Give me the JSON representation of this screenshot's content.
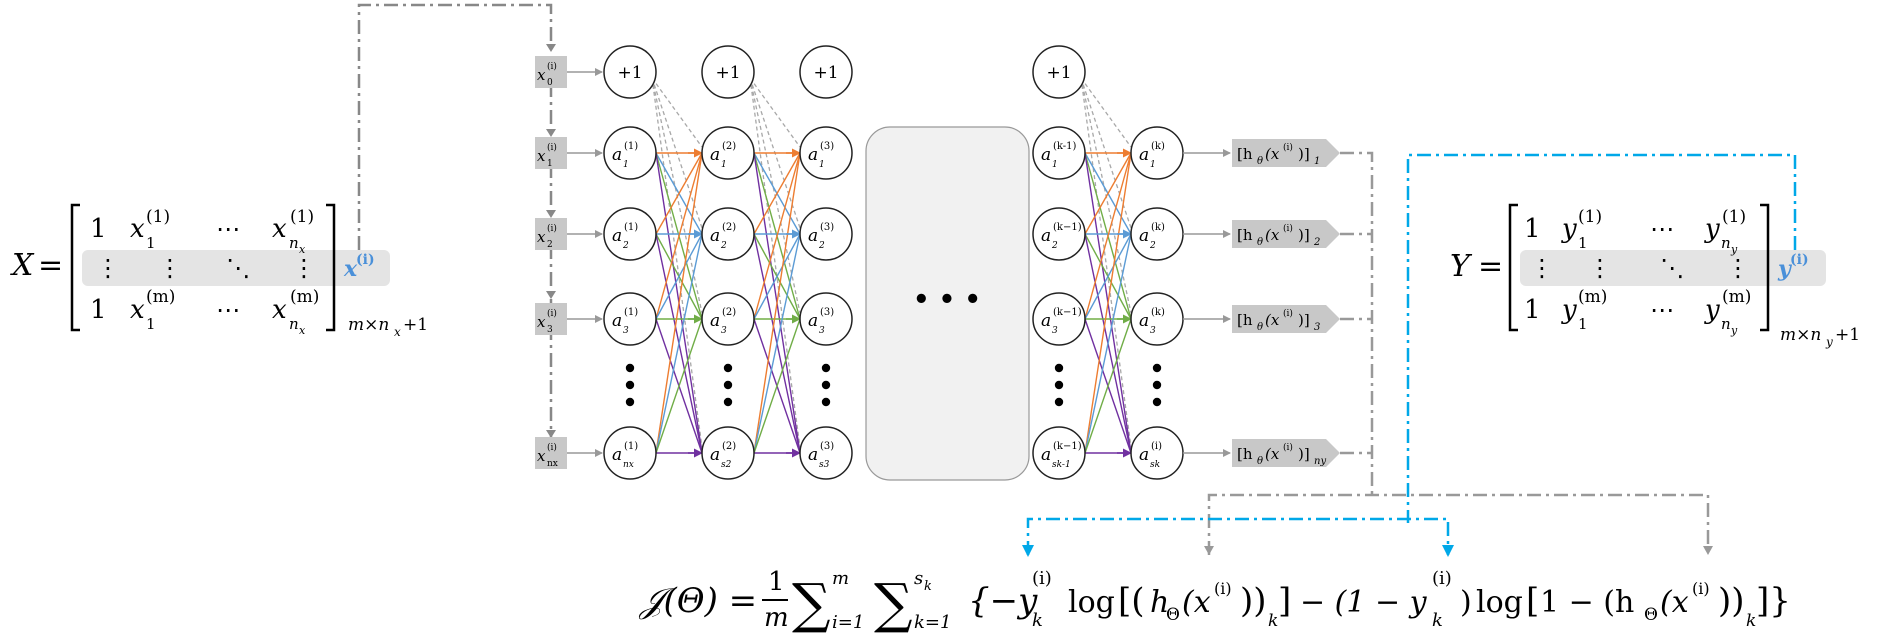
{
  "left_matrix": {
    "name": "X",
    "row1": [
      "1",
      "x",
      "(1)",
      "1",
      "⋯",
      "x",
      "(1)",
      "n",
      "x"
    ],
    "row_mid": [
      "⋮",
      "⋮",
      "⋱",
      "⋮"
    ],
    "row3": [
      "1",
      "x",
      "(m)",
      "1",
      "⋯",
      "x",
      "(m)",
      "n",
      "x"
    ],
    "dim": "m×n",
    "dim_sub": "x",
    "dim_tail": "+1",
    "row_label": "x",
    "row_label_sup": "(i)"
  },
  "right_matrix": {
    "name": "Y",
    "row1": [
      "1",
      "y",
      "(1)",
      "1",
      "⋯",
      "y",
      "(1)",
      "n",
      "y"
    ],
    "row_mid": [
      "⋮",
      "⋮",
      "⋱",
      "⋮"
    ],
    "row3": [
      "1",
      "y",
      "(m)",
      "1",
      "⋯",
      "y",
      "(m)",
      "n",
      "y"
    ],
    "dim": "m×n",
    "dim_sub": "y",
    "dim_tail": "+1",
    "row_label": "y",
    "row_label_sup": "(i)"
  },
  "inputs": [
    {
      "base": "x",
      "sub": "0",
      "sup": "(i)"
    },
    {
      "base": "x",
      "sub": "1",
      "sup": "(i)"
    },
    {
      "base": "x",
      "sub": "2",
      "sup": "(i)"
    },
    {
      "base": "x",
      "sub": "3",
      "sup": "(i)"
    },
    {
      "base": "x",
      "sub": "nx",
      "sup": "(i)"
    }
  ],
  "bias_label": "+1",
  "layers": [
    {
      "units": [
        {
          "base": "a",
          "sub": "1",
          "sup": "(1)"
        },
        {
          "base": "a",
          "sub": "2",
          "sup": "(1)"
        },
        {
          "base": "a",
          "sub": "3",
          "sup": "(1)"
        },
        {
          "base": "a",
          "sub": "nx",
          "sup": "(1)"
        }
      ]
    },
    {
      "units": [
        {
          "base": "a",
          "sub": "1",
          "sup": "(2)"
        },
        {
          "base": "a",
          "sub": "2",
          "sup": "(2)"
        },
        {
          "base": "a",
          "sub": "3",
          "sup": "(2)"
        },
        {
          "base": "a",
          "sub": "s2",
          "sup": "(2)"
        }
      ]
    },
    {
      "units": [
        {
          "base": "a",
          "sub": "1",
          "sup": "(3)"
        },
        {
          "base": "a",
          "sub": "2",
          "sup": "(3)"
        },
        {
          "base": "a",
          "sub": "3",
          "sup": "(3)"
        },
        {
          "base": "a",
          "sub": "s3",
          "sup": "(3)"
        }
      ]
    },
    {
      "units": [
        {
          "base": "a",
          "sub": "1",
          "sup": "(k-1)"
        },
        {
          "base": "a",
          "sub": "2",
          "sup": "(k−1)"
        },
        {
          "base": "a",
          "sub": "3",
          "sup": "(k−1)"
        },
        {
          "base": "a",
          "sub": "sk-1",
          "sup": "(k−1)"
        }
      ]
    },
    {
      "units": [
        {
          "base": "a",
          "sub": "1",
          "sup": "(k)"
        },
        {
          "base": "a",
          "sub": "2",
          "sup": "(k)"
        },
        {
          "base": "a",
          "sub": "3",
          "sup": "(k)"
        },
        {
          "base": "a",
          "sub": "sk",
          "sup": "(i)"
        }
      ]
    }
  ],
  "ellipsis_box": "• • •",
  "outputs": [
    {
      "text": "[h",
      "theta": "θ",
      "arg": "(x",
      "sup": "(i)",
      "close": ")]",
      "sub": "1"
    },
    {
      "text": "[h",
      "theta": "θ",
      "arg": "(x",
      "sup": "(i)",
      "close": ")]",
      "sub": "2"
    },
    {
      "text": "[h",
      "theta": "θ",
      "arg": "(x",
      "sup": "(i)",
      "close": ")]",
      "sub": "3"
    },
    {
      "text": "[h",
      "theta": "θ",
      "arg": "(x",
      "sup": "(i)",
      "close": ")]",
      "sub": "ny"
    }
  ],
  "formula": {
    "lhs": "𝒥(Θ) =",
    "frac_num": "1",
    "frac_den": "m",
    "sum1_top": "m",
    "sum1_bot": "i=1",
    "sum2_top": "s",
    "sum2_top_sub": "k",
    "sum2_bot": "k=1",
    "body": "{−y",
    "y_sup": "(i)",
    "y_sub": "k",
    "log1": "log",
    "h_part": "h",
    "Theta": "Θ",
    "x_arg": "(x",
    "x_sup": "(i)",
    "minus_one": "− (1 − y",
    "log2": "log",
    "one_minus": "1 − (h",
    "k_sub": "k"
  },
  "colors": {
    "orange": "#ED7D31",
    "blue": "#5B9BD5",
    "green": "#70AD47",
    "purple": "#7030A0",
    "cyan": "#00A8E8",
    "gray": "#999999",
    "highlight": "#E4E4E4",
    "accent_text": "#4A90D9"
  }
}
